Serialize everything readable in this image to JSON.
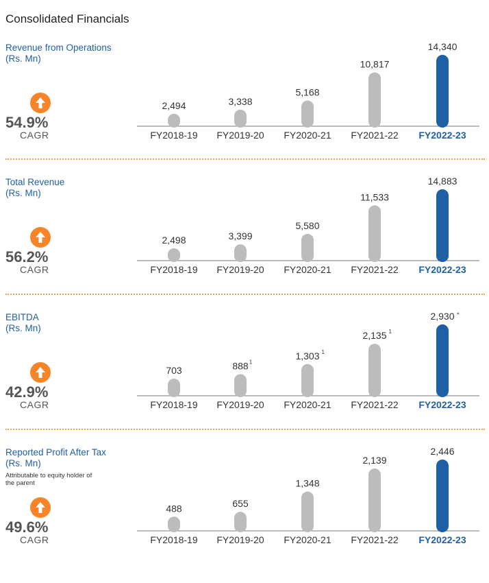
{
  "page_title": "Consolidated Financials",
  "colors": {
    "accent": "#1f5fa6",
    "bar": "#bcbcbc",
    "highlight_bar": "#1f5fa6",
    "icon": "#f6852a",
    "separator": "#f4a24f"
  },
  "icons": {
    "cagr": "arrow-up-circle-icon"
  },
  "chart_data": [
    {
      "type": "bar",
      "title": "Revenue from Operations",
      "subtitle": "(Rs. Mn)",
      "note": "",
      "categories": [
        "FY2018-19",
        "FY2019-20",
        "FY2020-21",
        "FY2021-22",
        "FY2022-23"
      ],
      "values": [
        2494,
        3338,
        5168,
        10817,
        14340
      ],
      "labels": [
        "2,494",
        "3,338",
        "5,168",
        "10,817",
        "14,340"
      ],
      "footnotes": [
        "",
        "",
        "",
        "",
        ""
      ],
      "highlight_index": 4,
      "cagr": "54.9%",
      "cagr_label": "CAGR"
    },
    {
      "type": "bar",
      "title": "Total Revenue",
      "subtitle": "(Rs. Mn)",
      "note": "",
      "categories": [
        "FY2018-19",
        "FY2019-20",
        "FY2020-21",
        "FY2021-22",
        "FY2022-23"
      ],
      "values": [
        2498,
        3399,
        5580,
        11533,
        14883
      ],
      "labels": [
        "2,498",
        "3,399",
        "5,580",
        "11,533",
        "14,883"
      ],
      "footnotes": [
        "",
        "",
        "",
        "",
        ""
      ],
      "highlight_index": 4,
      "cagr": "56.2%",
      "cagr_label": "CAGR"
    },
    {
      "type": "bar",
      "title": "EBITDA",
      "subtitle": "(Rs. Mn)",
      "note": "",
      "categories": [
        "FY2018-19",
        "FY2019-20",
        "FY2020-21",
        "FY2021-22",
        "FY2022-23"
      ],
      "values": [
        703,
        888,
        1303,
        2135,
        2930
      ],
      "labels": [
        "703",
        "888",
        "1,303",
        "2,135",
        "2,930"
      ],
      "footnotes": [
        "",
        "1",
        "1",
        "1",
        "1"
      ],
      "highlight_index": 4,
      "cagr": "42.9%",
      "cagr_label": "CAGR"
    },
    {
      "type": "bar",
      "title": "Reported Profit After Tax",
      "subtitle": "(Rs. Mn)",
      "note": "Attributable to equity holder of the parent",
      "categories": [
        "FY2018-19",
        "FY2019-20",
        "FY2020-21",
        "FY2021-22",
        "FY2022-23"
      ],
      "values": [
        488,
        655,
        1348,
        2139,
        2446
      ],
      "labels": [
        "488",
        "655",
        "1,348",
        "2,139",
        "2,446"
      ],
      "footnotes": [
        "",
        "",
        "",
        "",
        ""
      ],
      "highlight_index": 4,
      "cagr": "49.6%",
      "cagr_label": "CAGR"
    }
  ]
}
